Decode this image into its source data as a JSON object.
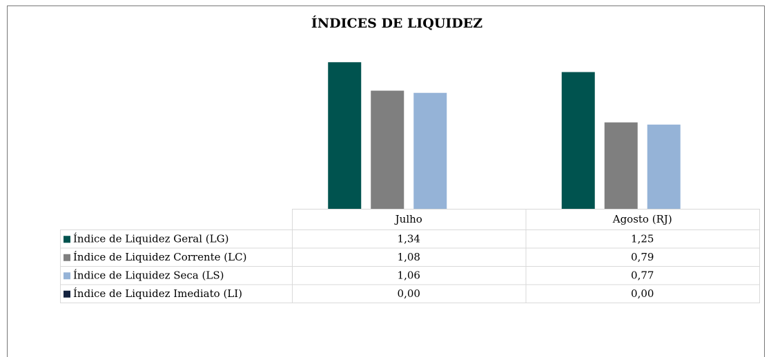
{
  "chart_data": {
    "type": "bar",
    "title": "ÍNDICES DE LIQUIDEZ",
    "categories": [
      "Julho",
      "Agosto (RJ)"
    ],
    "series": [
      {
        "name": "Índice de Liquidez Geral (LG)",
        "color": "#00534f",
        "values": [
          1.34,
          1.25
        ],
        "value_labels": [
          "1,34",
          "1,25"
        ]
      },
      {
        "name": "Índice de Liquidez Corrente (LC)",
        "color": "#7f7f7f",
        "values": [
          1.08,
          0.79
        ],
        "value_labels": [
          "1,08",
          "0,79"
        ]
      },
      {
        "name": "Índice de Liquidez Seca (LS)",
        "color": "#95b3d7",
        "values": [
          1.06,
          0.77
        ],
        "value_labels": [
          "1,06",
          "0,77"
        ]
      },
      {
        "name": "Índice de Liquidez Imediato (LI)",
        "color": "#14233f",
        "values": [
          0,
          0
        ],
        "value_labels": [
          "0,00",
          "0,00"
        ]
      }
    ],
    "ylim": [
      0,
      1.6
    ]
  }
}
